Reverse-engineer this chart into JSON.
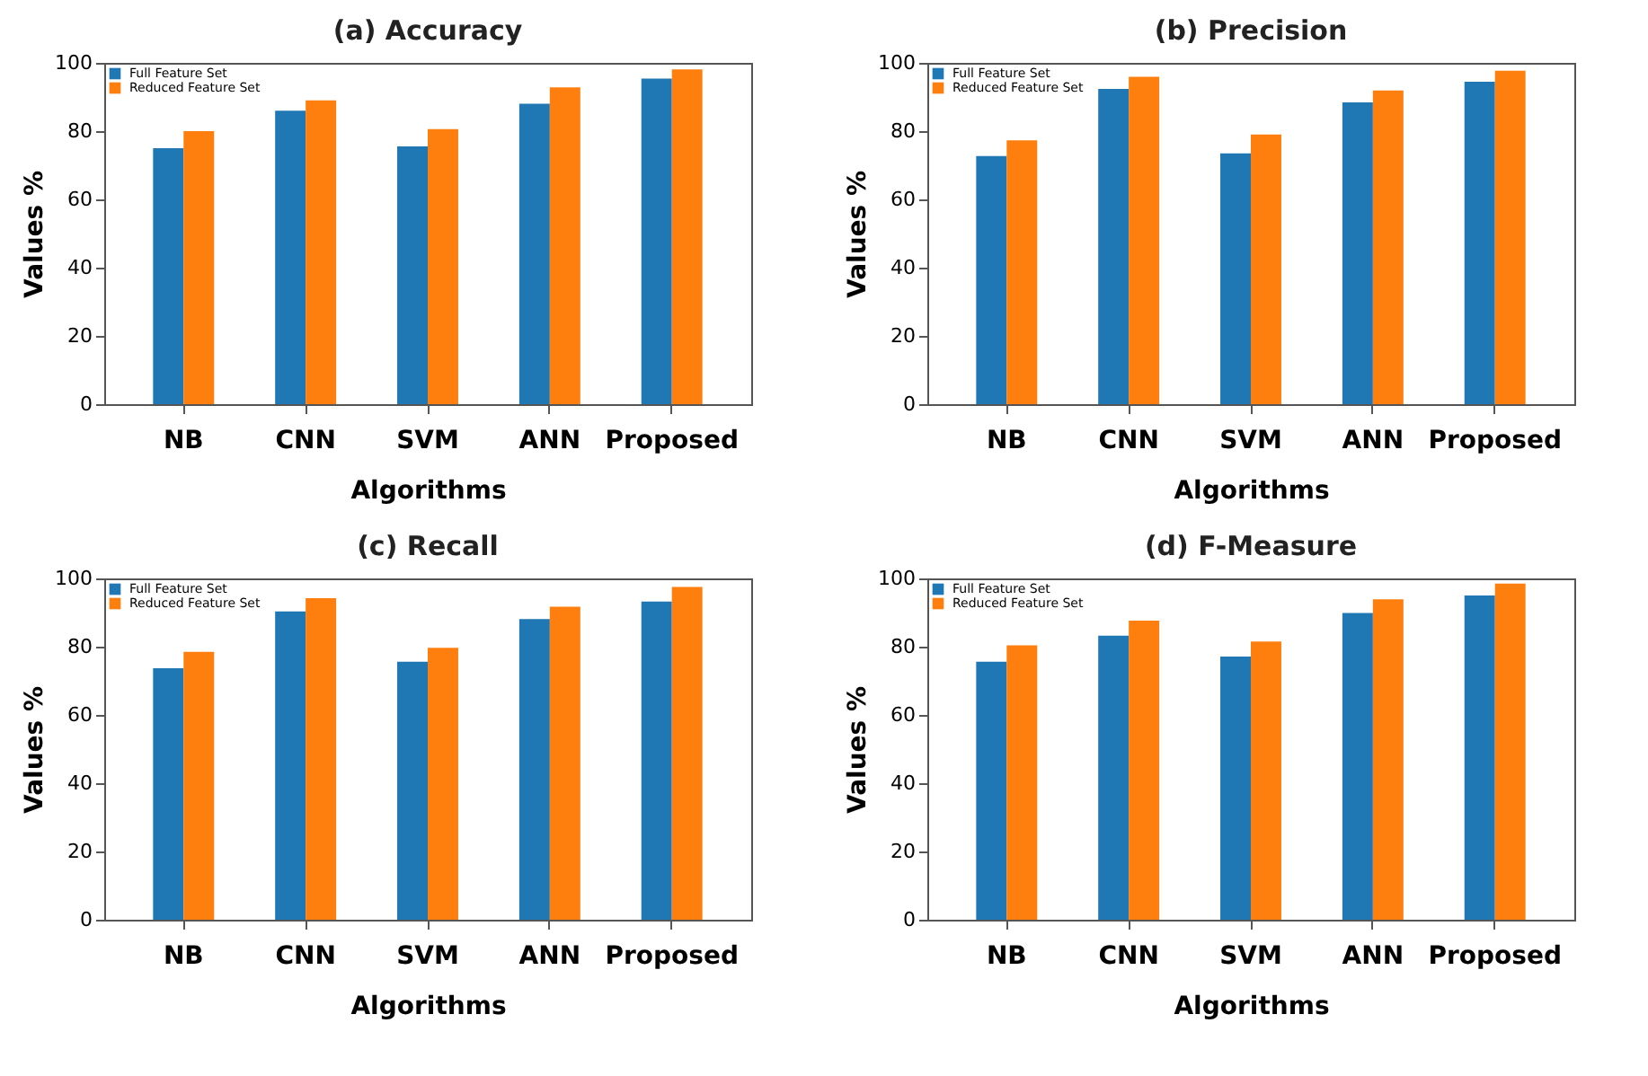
{
  "chart_data": [
    {
      "type": "bar",
      "title": "(a) Accuracy",
      "xlabel": "Algorithms",
      "ylabel": "Values %",
      "categories": [
        "NB",
        "CNN",
        "SVM",
        "ANN",
        "Proposed"
      ],
      "series": [
        {
          "name": "Full Feature Set",
          "color": "#1f77b4",
          "values": [
            75,
            86,
            75.5,
            88,
            95.4
          ]
        },
        {
          "name": "Reduced Feature Set",
          "color": "#ff7f0e",
          "values": [
            80,
            89,
            80.6,
            92.8,
            98.1
          ]
        }
      ],
      "ylim": [
        0,
        100
      ],
      "yticks": [
        0,
        20,
        40,
        60,
        80,
        100
      ],
      "legend": "top left",
      "grid": false
    },
    {
      "type": "bar",
      "title": "(b) Precision",
      "xlabel": "Algorithms",
      "ylabel": "Values %",
      "categories": [
        "NB",
        "CNN",
        "SVM",
        "ANN",
        "Proposed"
      ],
      "series": [
        {
          "name": "Full Feature Set",
          "color": "#1f77b4",
          "values": [
            72.7,
            92.4,
            73.5,
            88.4,
            94.5
          ]
        },
        {
          "name": "Reduced Feature Set",
          "color": "#ff7f0e",
          "values": [
            77.3,
            95.9,
            79,
            91.9,
            97.7
          ]
        }
      ],
      "ylim": [
        0,
        100
      ],
      "yticks": [
        0,
        20,
        40,
        60,
        80,
        100
      ],
      "legend": "top left",
      "grid": false
    },
    {
      "type": "bar",
      "title": "(c) Recall",
      "xlabel": "Algorithms",
      "ylabel": "Values %",
      "categories": [
        "NB",
        "CNN",
        "SVM",
        "ANN",
        "Proposed"
      ],
      "series": [
        {
          "name": "Full Feature Set",
          "color": "#1f77b4",
          "values": [
            73.7,
            90.3,
            75.6,
            88.1,
            93.2
          ]
        },
        {
          "name": "Reduced Feature Set",
          "color": "#ff7f0e",
          "values": [
            78.5,
            94.2,
            79.7,
            91.7,
            97.5
          ]
        }
      ],
      "ylim": [
        0,
        100
      ],
      "yticks": [
        0,
        20,
        40,
        60,
        80,
        100
      ],
      "legend": "top left",
      "grid": false
    },
    {
      "type": "bar",
      "title": "(d) F-Measure",
      "xlabel": "Algorithms",
      "ylabel": "Values %",
      "categories": [
        "NB",
        "CNN",
        "SVM",
        "ANN",
        "Proposed"
      ],
      "series": [
        {
          "name": "Full Feature Set",
          "color": "#1f77b4",
          "values": [
            75.6,
            83.2,
            77.1,
            89.9,
            95
          ]
        },
        {
          "name": "Reduced Feature Set",
          "color": "#ff7f0e",
          "values": [
            80.4,
            87.6,
            81.5,
            93.9,
            98.5
          ]
        }
      ],
      "ylim": [
        0,
        100
      ],
      "yticks": [
        0,
        20,
        40,
        60,
        80,
        100
      ],
      "legend": "top left",
      "grid": false
    }
  ]
}
